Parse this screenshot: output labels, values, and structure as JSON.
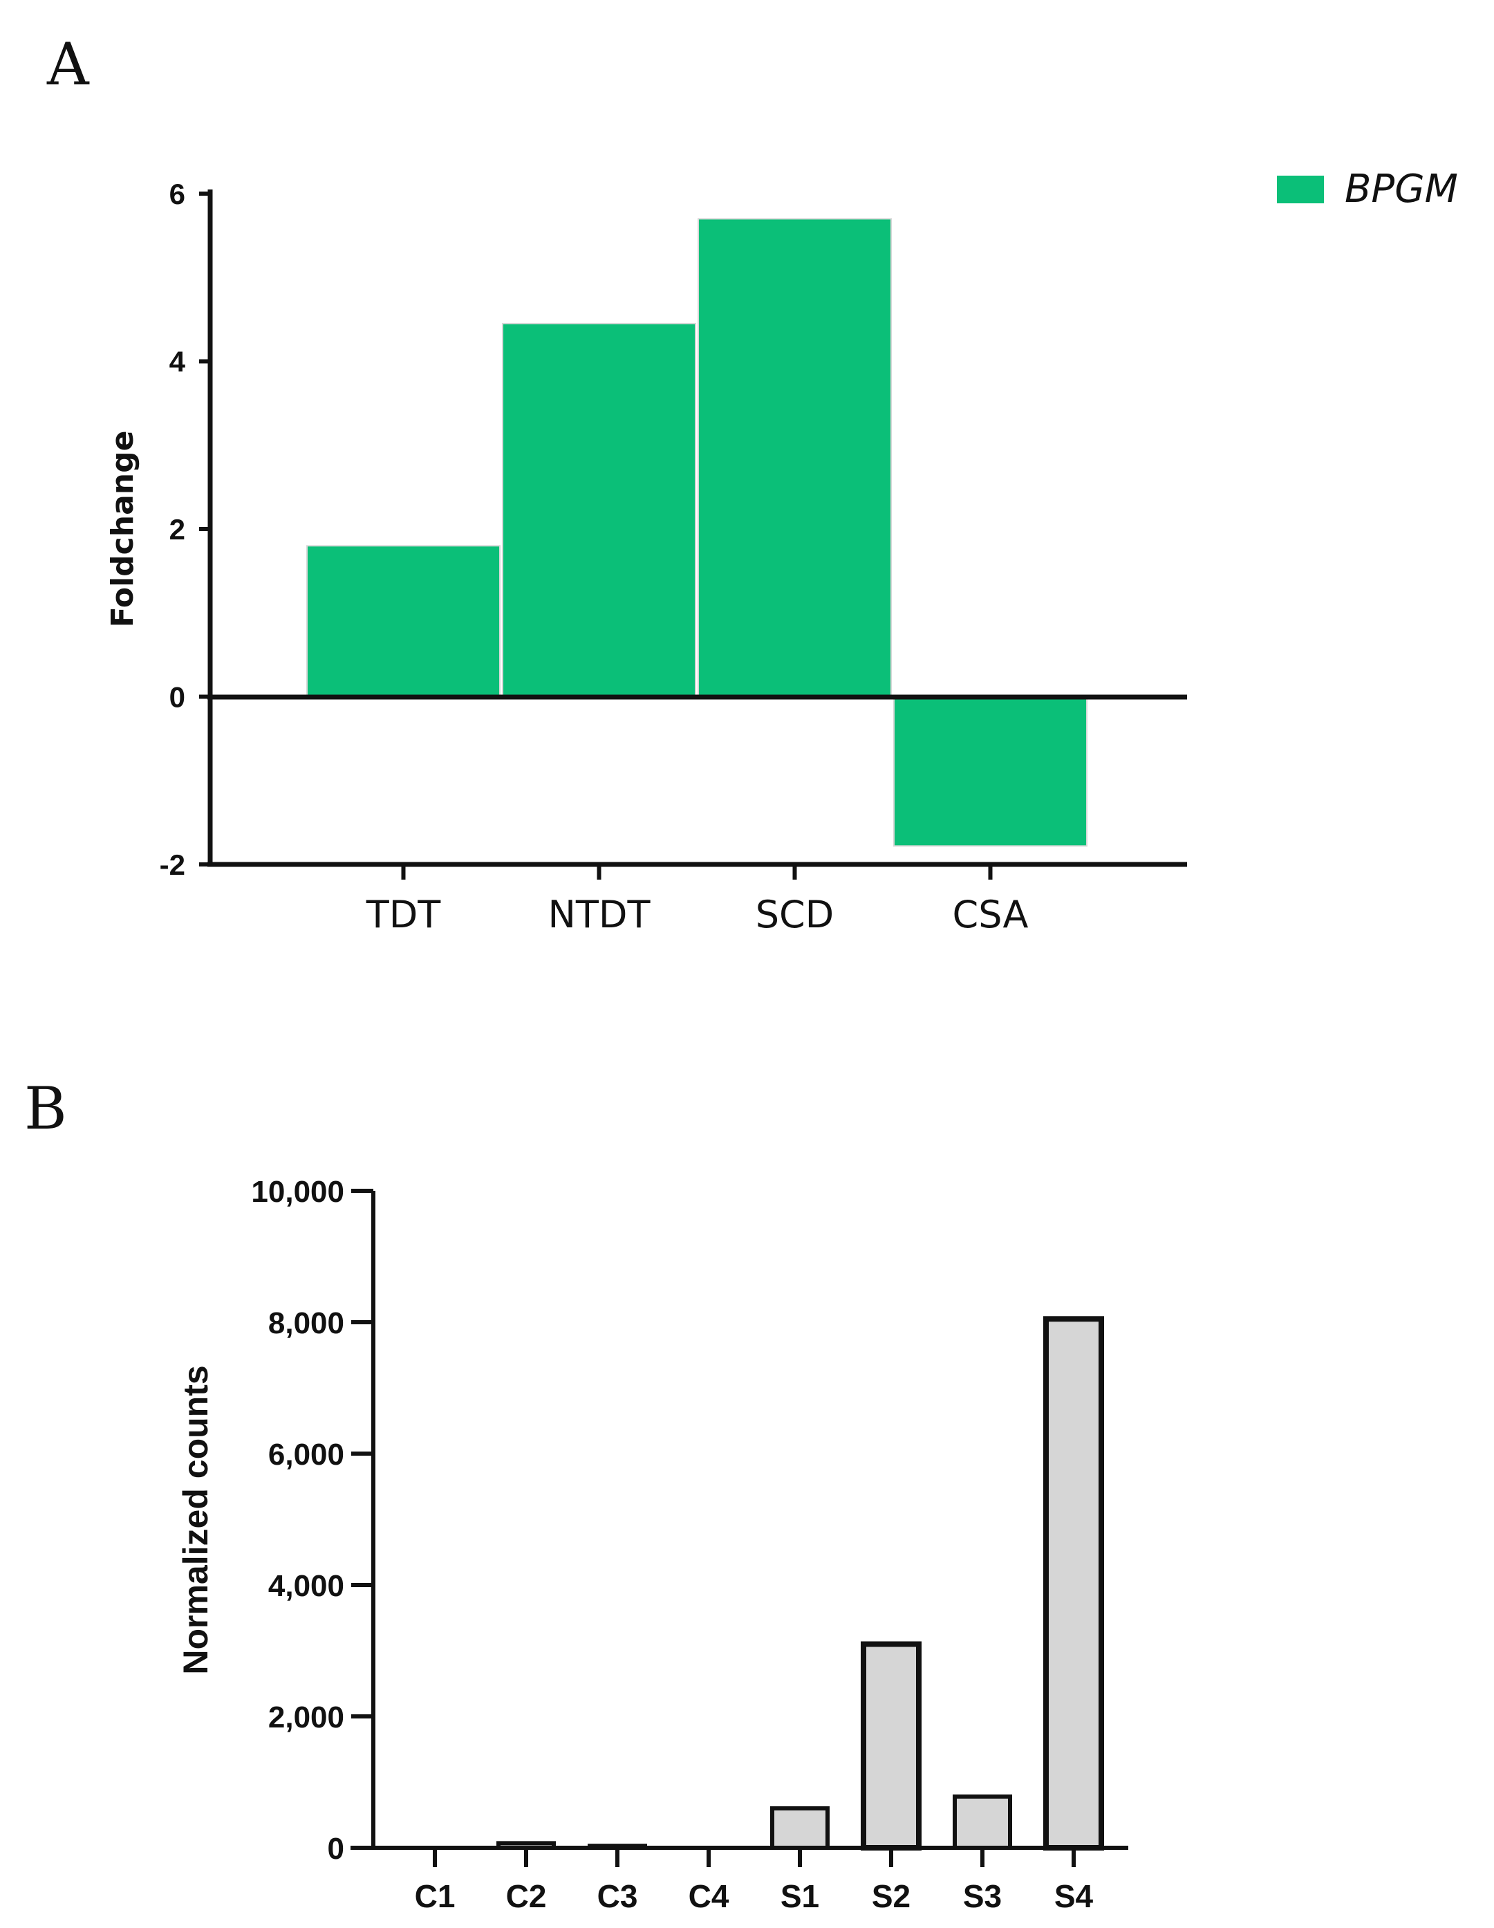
{
  "chart_data": [
    {
      "panel": "A",
      "type": "bar",
      "categories": [
        "TDT",
        "NTDT",
        "SCD",
        "CSA"
      ],
      "series": [
        {
          "name": "BPGM",
          "values": [
            1.8,
            4.45,
            5.7,
            -1.78
          ]
        }
      ],
      "ylabel": "Foldchange",
      "xlabel": "",
      "ylim": [
        -2,
        6
      ],
      "yticks": [
        6,
        4,
        2,
        0,
        -2
      ],
      "legend_position": "top-right",
      "color": "#0bbf78"
    },
    {
      "panel": "B",
      "type": "bar",
      "categories": [
        "C1",
        "C2",
        "C3",
        "C4",
        "S1",
        "S2",
        "S3",
        "S4"
      ],
      "values": [
        0,
        70,
        30,
        0,
        600,
        3100,
        780,
        8050
      ],
      "ylabel": "Normalized counts",
      "xlabel": "",
      "ylim": [
        0,
        10000
      ],
      "yticks": [
        10000,
        8000,
        6000,
        4000,
        2000,
        0
      ],
      "ytick_labels": [
        "10,000",
        "8,000",
        "6,000",
        "4,000",
        "2,000",
        "0"
      ],
      "fill_color": "#d6d6d6",
      "edge_color": "#111111"
    }
  ]
}
